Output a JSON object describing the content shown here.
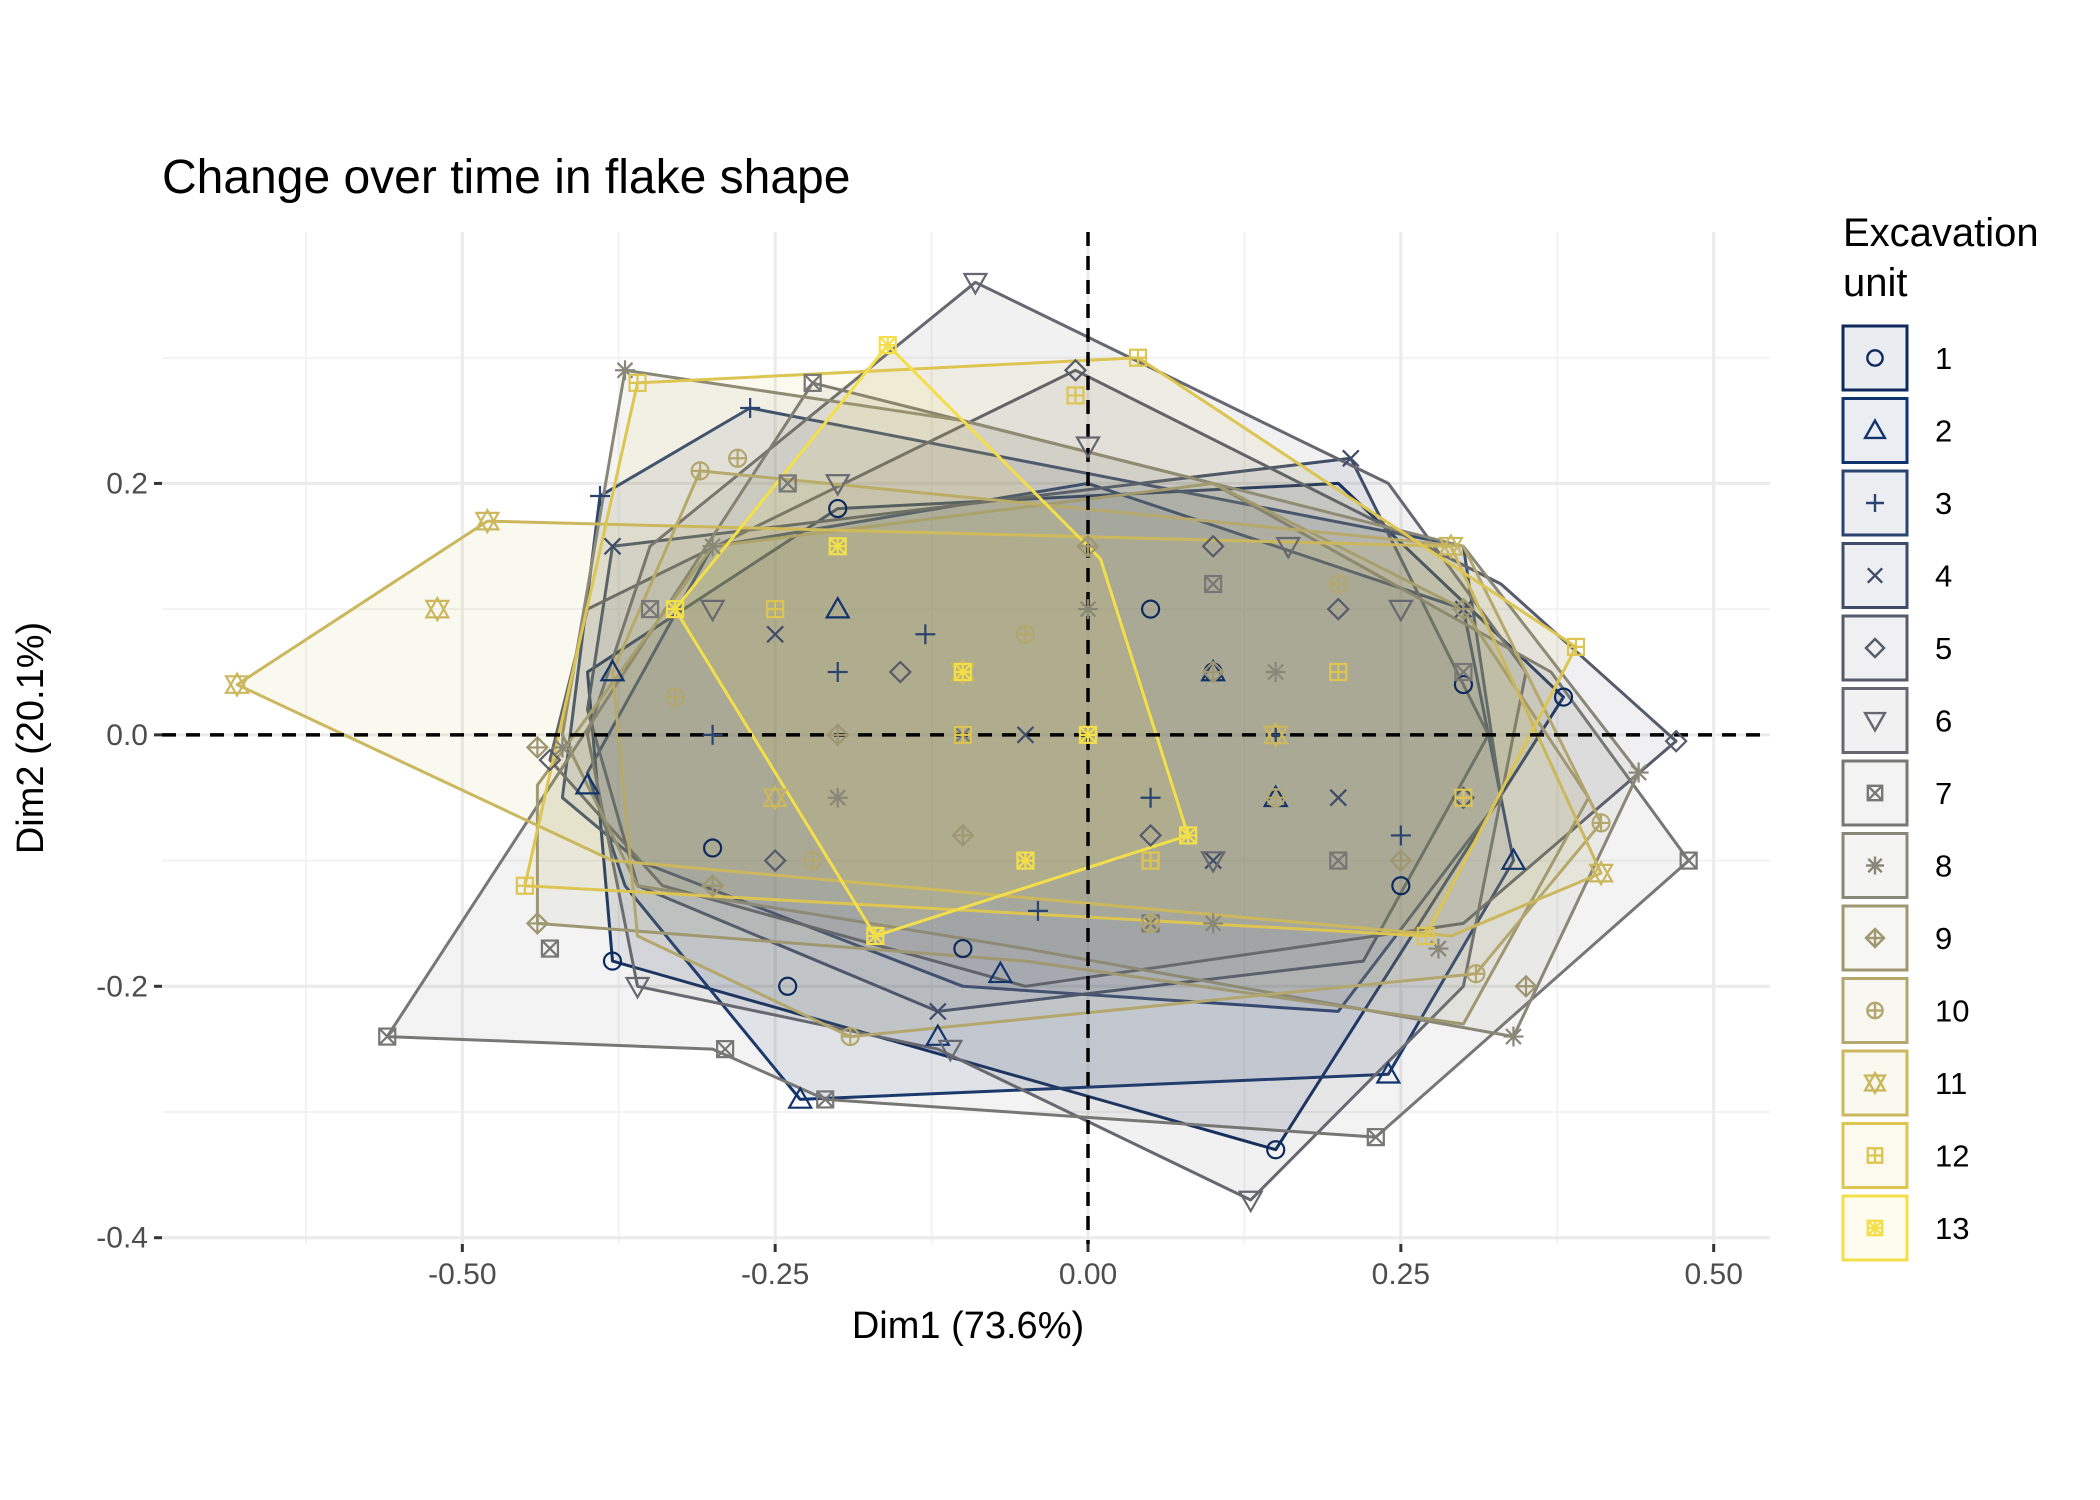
{
  "chart_data": {
    "type": "scatter",
    "title": "Change over time in flake shape",
    "xlabel": "Dim1 (73.6%)",
    "ylabel": "Dim2 (20.1%)",
    "xlim": [
      -0.74,
      0.545
    ],
    "ylim": [
      -0.405,
      0.4
    ],
    "x_ticks": [
      -0.5,
      -0.25,
      0,
      0.25,
      0.5
    ],
    "x_tick_labels": [
      "-0.50",
      "-0.25",
      "0.00",
      "0.25",
      "0.50"
    ],
    "y_ticks": [
      -0.4,
      -0.2,
      0,
      0.2
    ],
    "y_tick_labels": [
      "-0.4",
      "-0.2",
      "0.0",
      "0.2"
    ],
    "grid": true,
    "reference_lines": {
      "x": 0,
      "y": 0,
      "style": "dashed"
    },
    "legend": {
      "title_lines": [
        "Excavation",
        "unit"
      ],
      "placement": "right"
    },
    "series": [
      {
        "name": "1",
        "symbol": "circle",
        "color": "#0e2a5c",
        "hull": [
          [
            -0.38,
            -0.18
          ],
          [
            0.15,
            -0.33
          ],
          [
            0.38,
            0.03
          ],
          [
            0.2,
            0.2
          ],
          [
            -0.2,
            0.18
          ],
          [
            -0.4,
            0.05
          ]
        ],
        "points": [
          [
            -0.38,
            -0.18
          ],
          [
            0.15,
            -0.33
          ],
          [
            0.38,
            0.03
          ],
          [
            -0.2,
            0.18
          ],
          [
            -0.24,
            -0.2
          ],
          [
            0.1,
            0.05
          ],
          [
            -0.1,
            -0.17
          ],
          [
            0.05,
            0.1
          ],
          [
            -0.3,
            -0.09
          ],
          [
            0.25,
            -0.12
          ],
          [
            0.3,
            0.04
          ]
        ]
      },
      {
        "name": "2",
        "symbol": "triangle-up",
        "color": "#13336b",
        "hull": [
          [
            -0.23,
            -0.29
          ],
          [
            0.24,
            -0.27
          ],
          [
            0.34,
            -0.1
          ],
          [
            0.3,
            0.1
          ],
          [
            0.0,
            0.2
          ],
          [
            -0.3,
            0.15
          ],
          [
            -0.4,
            -0.03
          ],
          [
            -0.37,
            -0.12
          ]
        ],
        "points": [
          [
            -0.23,
            -0.29
          ],
          [
            0.24,
            -0.27
          ],
          [
            0.34,
            -0.1
          ],
          [
            -0.4,
            -0.04
          ],
          [
            -0.38,
            0.05
          ],
          [
            -0.07,
            -0.19
          ],
          [
            -0.12,
            -0.24
          ],
          [
            0.1,
            0.05
          ],
          [
            -0.2,
            0.1
          ],
          [
            0.15,
            -0.05
          ]
        ]
      },
      {
        "name": "3",
        "symbol": "plus",
        "color": "#2b4370",
        "hull": [
          [
            -0.39,
            0.19
          ],
          [
            -0.27,
            0.26
          ],
          [
            0.3,
            0.15
          ],
          [
            0.33,
            -0.05
          ],
          [
            0.2,
            -0.22
          ],
          [
            -0.1,
            -0.2
          ],
          [
            -0.36,
            -0.1
          ],
          [
            -0.42,
            -0.05
          ]
        ],
        "points": [
          [
            -0.39,
            0.19
          ],
          [
            -0.27,
            0.26
          ],
          [
            -0.13,
            0.08
          ],
          [
            0.05,
            -0.05
          ],
          [
            -0.04,
            -0.14
          ],
          [
            0.15,
            0.0
          ],
          [
            -0.2,
            0.05
          ],
          [
            0.25,
            -0.08
          ],
          [
            -0.3,
            0.0
          ]
        ]
      },
      {
        "name": "4",
        "symbol": "cross",
        "color": "#3e4c6a",
        "hull": [
          [
            -0.38,
            0.15
          ],
          [
            0.21,
            0.22
          ],
          [
            0.32,
            0.0
          ],
          [
            0.22,
            -0.18
          ],
          [
            -0.12,
            -0.22
          ],
          [
            -0.36,
            -0.12
          ],
          [
            -0.4,
            0.02
          ]
        ],
        "points": [
          [
            0.21,
            0.22
          ],
          [
            -0.12,
            -0.22
          ],
          [
            0.3,
            0.1
          ],
          [
            -0.38,
            0.15
          ],
          [
            -0.05,
            0.0
          ],
          [
            0.1,
            -0.1
          ],
          [
            -0.25,
            0.08
          ],
          [
            0.2,
            -0.05
          ]
        ]
      },
      {
        "name": "5",
        "symbol": "diamond",
        "color": "#555b6a",
        "hull": [
          [
            -0.4,
            0.1
          ],
          [
            -0.01,
            0.29
          ],
          [
            0.33,
            0.12
          ],
          [
            0.47,
            -0.005
          ],
          [
            0.3,
            -0.15
          ],
          [
            -0.05,
            -0.2
          ],
          [
            -0.34,
            -0.12
          ],
          [
            -0.43,
            -0.02
          ]
        ],
        "points": [
          [
            0.47,
            -0.005
          ],
          [
            -0.01,
            0.29
          ],
          [
            -0.43,
            -0.02
          ],
          [
            0.2,
            0.1
          ],
          [
            -0.15,
            0.05
          ],
          [
            0.05,
            -0.08
          ],
          [
            0.3,
            -0.05
          ],
          [
            -0.25,
            -0.1
          ],
          [
            0.1,
            0.15
          ]
        ]
      },
      {
        "name": "6",
        "symbol": "triangle-down",
        "color": "#666770",
        "hull": [
          [
            -0.09,
            0.36
          ],
          [
            0.24,
            0.2
          ],
          [
            0.35,
            0.05
          ],
          [
            0.3,
            -0.2
          ],
          [
            0.13,
            -0.37
          ],
          [
            -0.12,
            -0.25
          ],
          [
            -0.36,
            -0.2
          ],
          [
            -0.4,
            0.0
          ],
          [
            -0.35,
            0.15
          ]
        ],
        "points": [
          [
            -0.09,
            0.36
          ],
          [
            0.13,
            -0.37
          ],
          [
            -0.36,
            -0.2
          ],
          [
            0.0,
            0.23
          ],
          [
            0.16,
            0.15
          ],
          [
            -0.11,
            -0.25
          ],
          [
            -0.2,
            0.2
          ],
          [
            0.1,
            -0.1
          ],
          [
            -0.3,
            0.1
          ],
          [
            0.25,
            0.1
          ]
        ]
      },
      {
        "name": "7",
        "symbol": "square-cross",
        "color": "#777775",
        "hull": [
          [
            -0.56,
            -0.24
          ],
          [
            -0.22,
            0.28
          ],
          [
            0.1,
            0.2
          ],
          [
            0.37,
            0.05
          ],
          [
            0.48,
            -0.1
          ],
          [
            0.23,
            -0.32
          ],
          [
            -0.21,
            -0.29
          ],
          [
            -0.3,
            -0.25
          ]
        ],
        "points": [
          [
            -0.56,
            -0.24
          ],
          [
            -0.22,
            0.28
          ],
          [
            0.48,
            -0.1
          ],
          [
            0.23,
            -0.32
          ],
          [
            -0.21,
            -0.29
          ],
          [
            -0.29,
            -0.25
          ],
          [
            -0.43,
            -0.17
          ],
          [
            -0.24,
            0.2
          ],
          [
            0.1,
            0.12
          ],
          [
            -0.1,
            0.0
          ],
          [
            0.2,
            -0.1
          ],
          [
            0.3,
            0.05
          ],
          [
            -0.35,
            0.1
          ],
          [
            0.05,
            -0.15
          ]
        ]
      },
      {
        "name": "8",
        "symbol": "asterisk",
        "color": "#898777",
        "hull": [
          [
            -0.37,
            0.29
          ],
          [
            -0.1,
            0.25
          ],
          [
            0.3,
            0.15
          ],
          [
            0.44,
            -0.03
          ],
          [
            0.34,
            -0.24
          ],
          [
            -0.05,
            -0.17
          ],
          [
            -0.36,
            -0.12
          ],
          [
            -0.42,
            0.0
          ]
        ],
        "points": [
          [
            -0.37,
            0.29
          ],
          [
            0.44,
            -0.03
          ],
          [
            0.34,
            -0.24
          ],
          [
            -0.42,
            -0.01
          ],
          [
            0.28,
            -0.17
          ],
          [
            0.0,
            0.1
          ],
          [
            -0.2,
            -0.05
          ],
          [
            0.15,
            0.05
          ],
          [
            -0.3,
            0.15
          ],
          [
            0.1,
            -0.15
          ]
        ]
      },
      {
        "name": "9",
        "symbol": "diamond-plus",
        "color": "#9e9772",
        "hull": [
          [
            -0.44,
            -0.04
          ],
          [
            -0.3,
            0.15
          ],
          [
            0.1,
            0.2
          ],
          [
            0.3,
            0.1
          ],
          [
            0.4,
            -0.05
          ],
          [
            0.3,
            -0.23
          ],
          [
            -0.05,
            -0.18
          ],
          [
            -0.44,
            -0.15
          ]
        ],
        "points": [
          [
            -0.44,
            -0.15
          ],
          [
            -0.44,
            -0.01
          ],
          [
            0.3,
            0.1
          ],
          [
            -0.2,
            0.0
          ],
          [
            0.1,
            0.05
          ],
          [
            0.25,
            -0.1
          ],
          [
            -0.3,
            -0.12
          ],
          [
            0.0,
            0.15
          ],
          [
            -0.1,
            -0.08
          ],
          [
            0.35,
            -0.2
          ]
        ]
      },
      {
        "name": "10",
        "symbol": "circle-plus",
        "color": "#b3a76e",
        "hull": [
          [
            -0.31,
            0.21
          ],
          [
            0.3,
            0.15
          ],
          [
            0.41,
            -0.07
          ],
          [
            0.31,
            -0.19
          ],
          [
            -0.19,
            -0.24
          ],
          [
            -0.36,
            -0.16
          ],
          [
            -0.38,
            0.05
          ]
        ],
        "points": [
          [
            -0.31,
            0.21
          ],
          [
            0.41,
            -0.07
          ],
          [
            0.31,
            -0.19
          ],
          [
            -0.19,
            -0.24
          ],
          [
            -0.28,
            0.22
          ],
          [
            -0.05,
            0.08
          ],
          [
            0.15,
            -0.05
          ],
          [
            -0.22,
            -0.1
          ],
          [
            0.2,
            0.12
          ],
          [
            0.05,
            -0.15
          ],
          [
            -0.33,
            0.03
          ]
        ]
      },
      {
        "name": "11",
        "symbol": "star-of-david",
        "color": "#cbb75e",
        "hull": [
          [
            -0.68,
            0.04
          ],
          [
            -0.48,
            0.17
          ],
          [
            0.29,
            0.15
          ],
          [
            0.41,
            -0.11
          ],
          [
            0.29,
            -0.16
          ],
          [
            -0.38,
            -0.1
          ]
        ],
        "points": [
          [
            -0.68,
            0.04
          ],
          [
            -0.48,
            0.17
          ],
          [
            -0.52,
            0.1
          ],
          [
            0.29,
            0.15
          ],
          [
            0.41,
            -0.11
          ],
          [
            -0.1,
            0.05
          ],
          [
            0.15,
            0.0
          ],
          [
            -0.25,
            -0.05
          ]
        ]
      },
      {
        "name": "12",
        "symbol": "square-plus",
        "color": "#ddc552",
        "hull": [
          [
            -0.36,
            0.28
          ],
          [
            0.04,
            0.3
          ],
          [
            0.39,
            0.07
          ],
          [
            0.27,
            -0.16
          ],
          [
            -0.45,
            -0.12
          ]
        ],
        "points": [
          [
            -0.36,
            0.28
          ],
          [
            0.04,
            0.3
          ],
          [
            0.39,
            0.07
          ],
          [
            0.27,
            -0.16
          ],
          [
            -0.45,
            -0.12
          ],
          [
            -0.01,
            0.27
          ],
          [
            -0.1,
            0.0
          ],
          [
            0.2,
            0.05
          ],
          [
            0.05,
            -0.1
          ],
          [
            -0.25,
            0.1
          ],
          [
            0.3,
            -0.05
          ]
        ]
      },
      {
        "name": "13",
        "symbol": "square-x",
        "color": "#f3df4a",
        "hull": [
          [
            -0.16,
            0.31
          ],
          [
            0.01,
            0.14
          ],
          [
            0.08,
            -0.08
          ],
          [
            -0.17,
            -0.16
          ],
          [
            -0.33,
            0.1
          ]
        ],
        "points": [
          [
            -0.16,
            0.31
          ],
          [
            0.08,
            -0.08
          ],
          [
            -0.17,
            -0.16
          ],
          [
            -0.33,
            0.1
          ],
          [
            -0.1,
            0.05
          ],
          [
            0.0,
            0.0
          ],
          [
            -0.05,
            -0.1
          ],
          [
            -0.2,
            0.15
          ]
        ]
      }
    ]
  }
}
